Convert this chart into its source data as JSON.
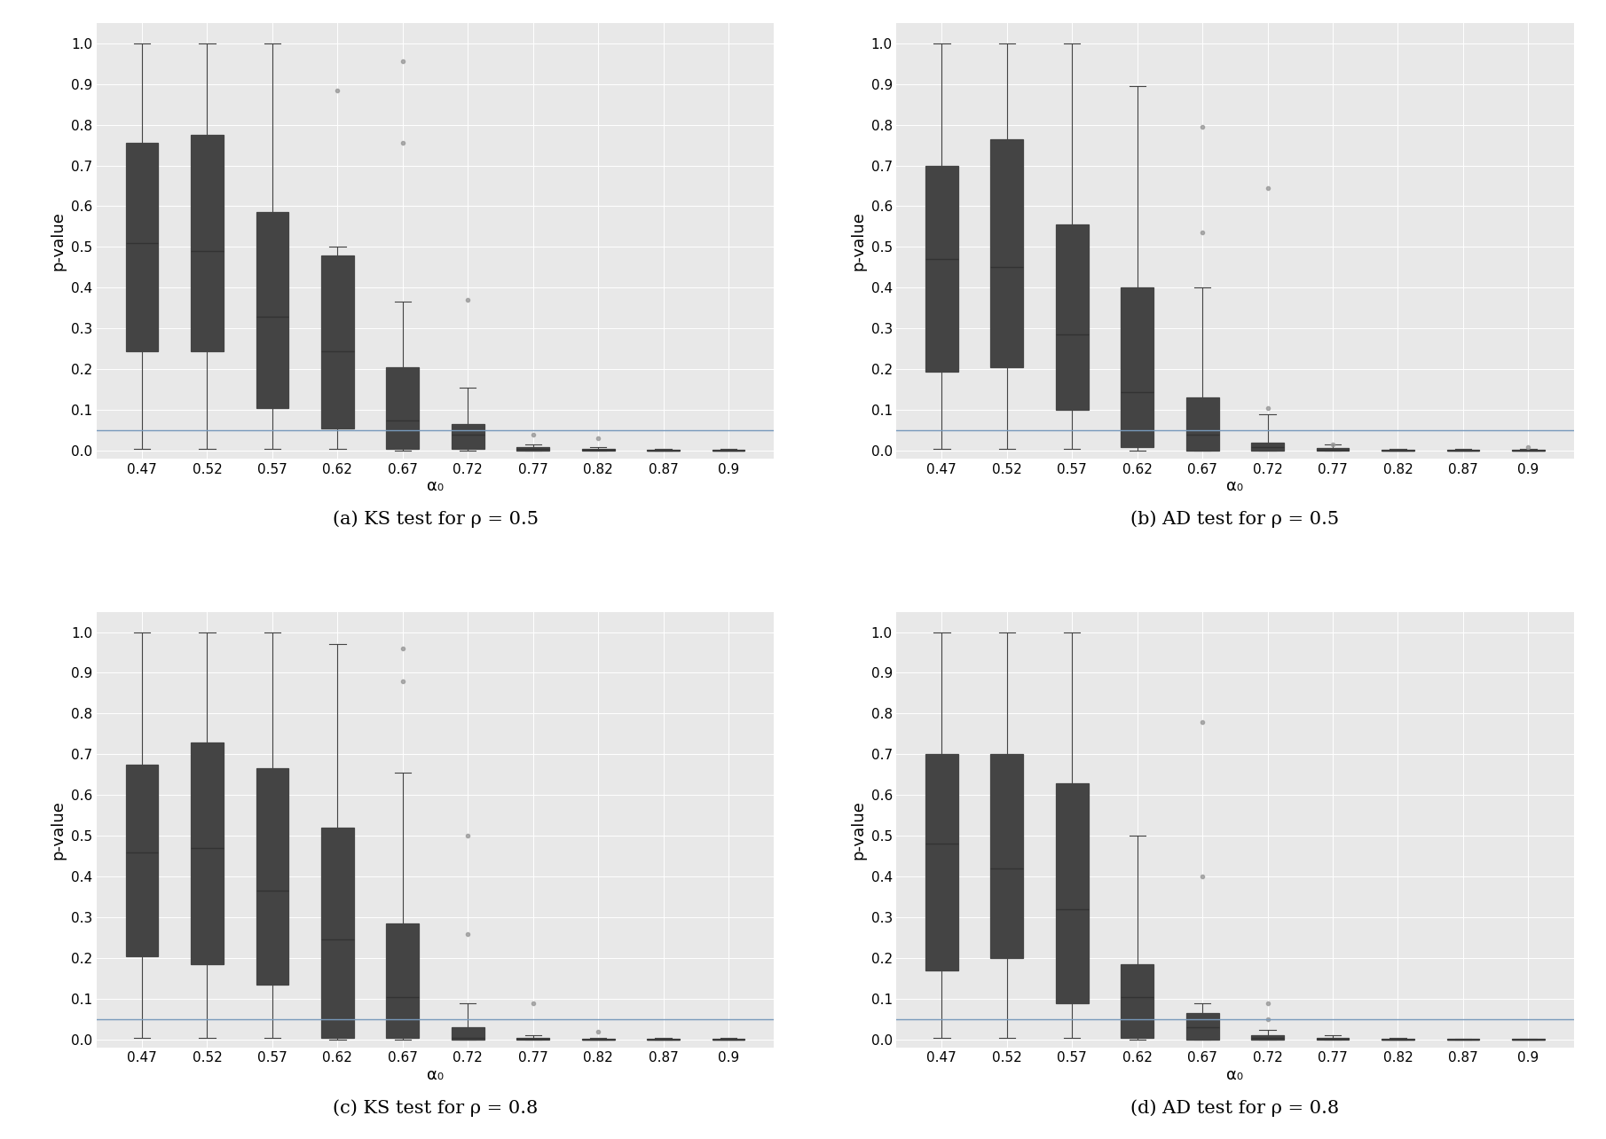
{
  "categories": [
    "0.47",
    "0.52",
    "0.57",
    "0.62",
    "0.67",
    "0.72",
    "0.77",
    "0.82",
    "0.87",
    "0.9"
  ],
  "hline_y": 0.05,
  "hline_color": "#7799bb",
  "background_color": "#e8e8e8",
  "box_facecolor": "#ffffff",
  "box_edgecolor": "#444444",
  "whisker_color": "#444444",
  "cap_color": "#444444",
  "flier_color": "#999999",
  "median_color": "#333333",
  "ylabel": "p-value",
  "xlabel": "α₀",
  "plots": [
    {
      "title": "(a) KS test for ρ = 0.5",
      "boxes": [
        {
          "q1": 0.245,
          "median": 0.51,
          "q3": 0.755,
          "whislo": 0.005,
          "whishi": 1.0,
          "fliers": []
        },
        {
          "q1": 0.245,
          "median": 0.49,
          "q3": 0.775,
          "whislo": 0.005,
          "whishi": 1.0,
          "fliers": []
        },
        {
          "q1": 0.105,
          "median": 0.33,
          "q3": 0.585,
          "whislo": 0.005,
          "whishi": 1.0,
          "fliers": []
        },
        {
          "q1": 0.055,
          "median": 0.245,
          "q3": 0.48,
          "whislo": 0.005,
          "whishi": 0.5,
          "fliers": [
            0.885
          ]
        },
        {
          "q1": 0.005,
          "median": 0.075,
          "q3": 0.205,
          "whislo": 0.0,
          "whishi": 0.365,
          "fliers": [
            0.755,
            0.955
          ]
        },
        {
          "q1": 0.005,
          "median": 0.04,
          "q3": 0.065,
          "whislo": 0.0,
          "whishi": 0.155,
          "fliers": [
            0.37
          ]
        },
        {
          "q1": 0.0,
          "median": 0.005,
          "q3": 0.01,
          "whislo": 0.0,
          "whishi": 0.015,
          "fliers": [
            0.04
          ]
        },
        {
          "q1": 0.0,
          "median": 0.002,
          "q3": 0.005,
          "whislo": 0.0,
          "whishi": 0.01,
          "fliers": [
            0.03
          ]
        },
        {
          "q1": 0.0,
          "median": 0.001,
          "q3": 0.003,
          "whislo": 0.0,
          "whishi": 0.005,
          "fliers": []
        },
        {
          "q1": 0.0,
          "median": 0.001,
          "q3": 0.003,
          "whislo": 0.0,
          "whishi": 0.005,
          "fliers": []
        }
      ]
    },
    {
      "title": "(b) AD test for ρ = 0.5",
      "boxes": [
        {
          "q1": 0.195,
          "median": 0.47,
          "q3": 0.7,
          "whislo": 0.005,
          "whishi": 1.0,
          "fliers": []
        },
        {
          "q1": 0.205,
          "median": 0.45,
          "q3": 0.765,
          "whislo": 0.005,
          "whishi": 1.0,
          "fliers": []
        },
        {
          "q1": 0.1,
          "median": 0.285,
          "q3": 0.555,
          "whislo": 0.005,
          "whishi": 1.0,
          "fliers": []
        },
        {
          "q1": 0.01,
          "median": 0.145,
          "q3": 0.4,
          "whislo": 0.0,
          "whishi": 0.895,
          "fliers": []
        },
        {
          "q1": 0.0,
          "median": 0.04,
          "q3": 0.13,
          "whislo": 0.0,
          "whishi": 0.4,
          "fliers": [
            0.535,
            0.795
          ]
        },
        {
          "q1": 0.0,
          "median": 0.01,
          "q3": 0.02,
          "whislo": 0.0,
          "whishi": 0.09,
          "fliers": [
            0.105,
            0.645
          ]
        },
        {
          "q1": 0.0,
          "median": 0.003,
          "q3": 0.007,
          "whislo": 0.0,
          "whishi": 0.015,
          "fliers": [
            0.015
          ]
        },
        {
          "q1": 0.0,
          "median": 0.001,
          "q3": 0.003,
          "whislo": 0.0,
          "whishi": 0.005,
          "fliers": []
        },
        {
          "q1": 0.0,
          "median": 0.001,
          "q3": 0.002,
          "whislo": 0.0,
          "whishi": 0.005,
          "fliers": []
        },
        {
          "q1": 0.0,
          "median": 0.001,
          "q3": 0.002,
          "whislo": 0.0,
          "whishi": 0.005,
          "fliers": [
            0.01
          ]
        }
      ]
    },
    {
      "title": "(c) KS test for ρ = 0.8",
      "boxes": [
        {
          "q1": 0.205,
          "median": 0.46,
          "q3": 0.675,
          "whislo": 0.005,
          "whishi": 1.0,
          "fliers": []
        },
        {
          "q1": 0.185,
          "median": 0.47,
          "q3": 0.73,
          "whislo": 0.005,
          "whishi": 1.0,
          "fliers": []
        },
        {
          "q1": 0.135,
          "median": 0.365,
          "q3": 0.665,
          "whislo": 0.005,
          "whishi": 1.0,
          "fliers": []
        },
        {
          "q1": 0.005,
          "median": 0.245,
          "q3": 0.52,
          "whislo": 0.0,
          "whishi": 0.97,
          "fliers": []
        },
        {
          "q1": 0.005,
          "median": 0.105,
          "q3": 0.285,
          "whislo": 0.0,
          "whishi": 0.655,
          "fliers": [
            0.88,
            0.96
          ]
        },
        {
          "q1": 0.0,
          "median": 0.005,
          "q3": 0.03,
          "whislo": 0.0,
          "whishi": 0.09,
          "fliers": [
            0.26,
            0.5
          ]
        },
        {
          "q1": 0.0,
          "median": 0.002,
          "q3": 0.005,
          "whislo": 0.0,
          "whishi": 0.01,
          "fliers": [
            0.09
          ]
        },
        {
          "q1": 0.0,
          "median": 0.001,
          "q3": 0.003,
          "whislo": 0.0,
          "whishi": 0.005,
          "fliers": [
            0.02
          ]
        },
        {
          "q1": 0.0,
          "median": 0.001,
          "q3": 0.002,
          "whislo": 0.0,
          "whishi": 0.005,
          "fliers": []
        },
        {
          "q1": 0.0,
          "median": 0.001,
          "q3": 0.002,
          "whislo": 0.0,
          "whishi": 0.005,
          "fliers": []
        }
      ]
    },
    {
      "title": "(d) AD test for ρ = 0.8",
      "boxes": [
        {
          "q1": 0.17,
          "median": 0.48,
          "q3": 0.7,
          "whislo": 0.005,
          "whishi": 1.0,
          "fliers": []
        },
        {
          "q1": 0.2,
          "median": 0.42,
          "q3": 0.7,
          "whislo": 0.005,
          "whishi": 1.0,
          "fliers": []
        },
        {
          "q1": 0.09,
          "median": 0.32,
          "q3": 0.63,
          "whislo": 0.005,
          "whishi": 1.0,
          "fliers": []
        },
        {
          "q1": 0.005,
          "median": 0.105,
          "q3": 0.185,
          "whislo": 0.0,
          "whishi": 0.5,
          "fliers": []
        },
        {
          "q1": 0.0,
          "median": 0.03,
          "q3": 0.065,
          "whislo": 0.0,
          "whishi": 0.09,
          "fliers": [
            0.4,
            0.78
          ]
        },
        {
          "q1": 0.0,
          "median": 0.005,
          "q3": 0.01,
          "whislo": 0.0,
          "whishi": 0.025,
          "fliers": [
            0.05,
            0.09
          ]
        },
        {
          "q1": 0.0,
          "median": 0.002,
          "q3": 0.005,
          "whislo": 0.0,
          "whishi": 0.01,
          "fliers": []
        },
        {
          "q1": 0.0,
          "median": 0.001,
          "q3": 0.003,
          "whislo": 0.0,
          "whishi": 0.005,
          "fliers": []
        },
        {
          "q1": 0.0,
          "median": 0.001,
          "q3": 0.002,
          "whislo": 0.0,
          "whishi": 0.003,
          "fliers": []
        },
        {
          "q1": 0.0,
          "median": 0.001,
          "q3": 0.002,
          "whislo": 0.0,
          "whishi": 0.003,
          "fliers": []
        }
      ]
    }
  ],
  "yticks": [
    0.0,
    0.1,
    0.2,
    0.3,
    0.4,
    0.5,
    0.6,
    0.7,
    0.8,
    0.9,
    1.0
  ],
  "ylim": [
    -0.02,
    1.05
  ],
  "tick_fontsize": 11,
  "label_fontsize": 13,
  "caption_fontsize": 15
}
